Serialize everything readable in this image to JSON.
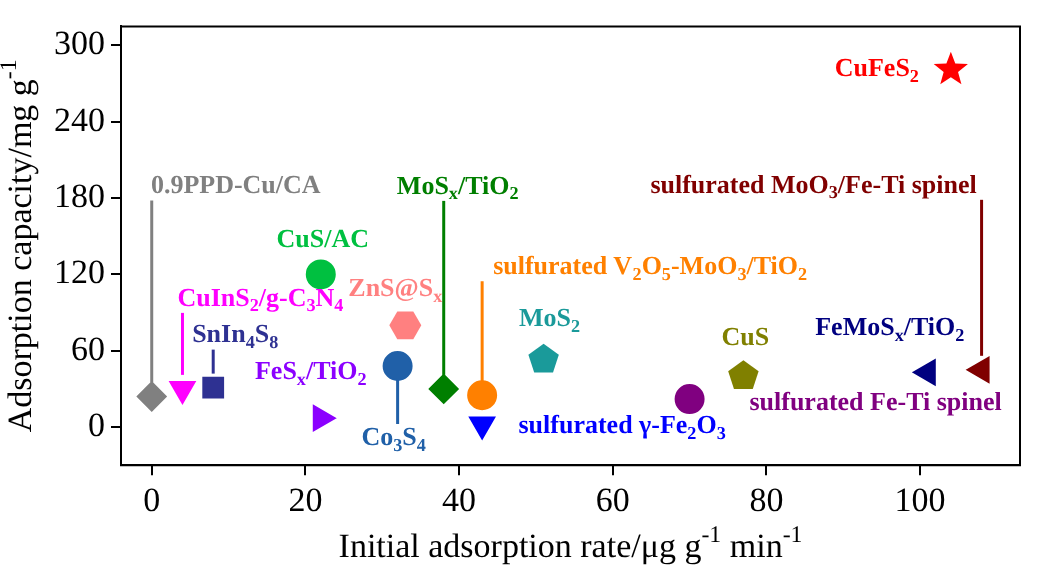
{
  "chart_data": {
    "type": "scatter",
    "xlabel": "Initial adsorption rate/μg g$^{-1}$ min$^{-1}$",
    "ylabel": "Adsorption capacity/mg g$^{-1}$",
    "xlim": [
      -4,
      113
    ],
    "ylim": [
      -30,
      315
    ],
    "xticks": [
      0,
      20,
      40,
      60,
      80,
      100
    ],
    "yticks": [
      0,
      60,
      120,
      180,
      240,
      300
    ],
    "grid": false,
    "legend": false,
    "series": [
      {
        "name": "0.9PPD-Cu/CA",
        "color": "#808080",
        "marker": "diamond",
        "x": [
          0
        ],
        "values": [
          24
        ]
      },
      {
        "name": "CuInS$_{2}$/g-C$_{3}$N$_{4}$",
        "color": "#ff00ff",
        "marker": "triangle",
        "x": [
          4
        ],
        "values": [
          30
        ]
      },
      {
        "name": "SnIn$_{4}$S$_{8}$",
        "color": "#2e3192",
        "marker": "square",
        "x": [
          8
        ],
        "values": [
          31
        ]
      },
      {
        "name": "FeS$_{x}$/TiO$_{2}$",
        "color": "#8b00ff",
        "marker": "triangle",
        "x": [
          22
        ],
        "values": [
          7
        ]
      },
      {
        "name": "CuS/AC",
        "color": "#00c040",
        "marker": "circle",
        "x": [
          22
        ],
        "values": [
          120
        ]
      },
      {
        "name": "ZnS@S$_{x}$",
        "color": "#ff8080",
        "x": [
          33
        ],
        "values": [
          80
        ]
      },
      {
        "name": "Co$_{3}$S$_{4}$",
        "color": "#2060a8",
        "marker": "circle",
        "x": [
          32
        ],
        "values": [
          48
        ]
      },
      {
        "name": "MoS$_{x}$/TiO$_{2}$",
        "color": "#007f00",
        "marker": "diamond",
        "x": [
          38
        ],
        "values": [
          30
        ]
      },
      {
        "name": "sulfurated V$_{2}$O$_{5}$-MoO$_{3}$/TiO$_{2}$",
        "color": "#ff8000",
        "marker": "circle",
        "x": [
          43
        ],
        "values": [
          25
        ]
      },
      {
        "name": "sulfurated γ-Fe$_{2}$O$_{3}$",
        "color": "#0000ff",
        "marker": "triangle",
        "x": [
          43
        ],
        "values": [
          2
        ]
      },
      {
        "name": "MoS$_{2}$",
        "color": "#1a9a9a",
        "x": [
          51
        ],
        "values": [
          53
        ]
      },
      {
        "name": "sulfurated Fe-Ti spinel",
        "color": "#800080",
        "marker": "circle",
        "x": [
          70
        ],
        "values": [
          22
        ]
      },
      {
        "name": "CuS",
        "color": "#808000",
        "x": [
          77
        ],
        "values": [
          40
        ]
      },
      {
        "name": "FeMoS$_{x}$/TiO$_{2}$",
        "color": "#000080",
        "marker": "triangle",
        "x": [
          101
        ],
        "values": [
          43
        ]
      },
      {
        "name": "sulfurated MoO$_{3}$/Fe-Ti spinel",
        "color": "#800000",
        "marker": "triangle",
        "x": [
          108
        ],
        "values": [
          45
        ]
      },
      {
        "name": "CuFeS$_{2}$",
        "color": "#ff0000",
        "marker": "star",
        "x": [
          104
        ],
        "values": [
          281
        ]
      }
    ]
  }
}
